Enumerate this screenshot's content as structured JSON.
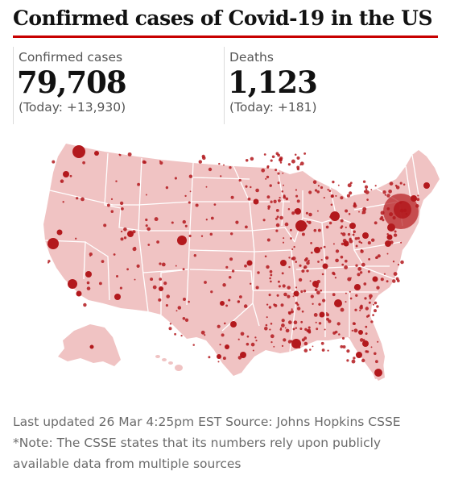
{
  "title": "Confirmed cases of Covid-19 in the US",
  "stats": {
    "confirmed": {
      "label": "Confirmed cases",
      "value": "79,708",
      "today": "(Today: +13,930)"
    },
    "deaths": {
      "label": "Deaths",
      "value": "1,123",
      "today": "(Today: +181)"
    }
  },
  "colors": {
    "accent": "#c70000",
    "land": "#f0c3c3",
    "borders": "#ffffff",
    "dots": "#b3191d"
  },
  "map": {
    "region": "United States",
    "marker_meaning": "confirmed cases by county (circle size ~ case count)"
  },
  "footer": {
    "updated": "Last updated 26 Mar 4:25pm EST Source: Johns Hopkins CSSE",
    "note": "*Note: The CSSE states that its numbers rely upon publicly available data from multiple sources"
  }
}
